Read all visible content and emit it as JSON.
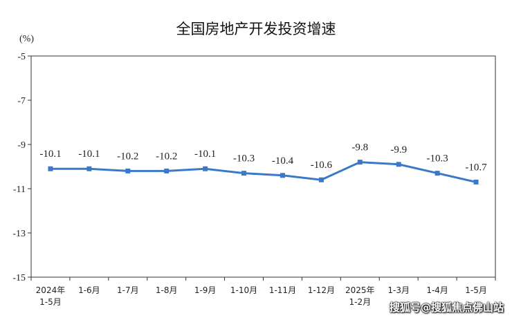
{
  "chart_data": {
    "type": "line",
    "title": "全国房地产开发投资增速",
    "ylabel": "(%)",
    "ylim": [
      -15,
      -5
    ],
    "yticks": [
      -5,
      -7,
      -9,
      -11,
      -13,
      -15
    ],
    "categories": [
      "2024年\n1-5月",
      "1-6月",
      "1-7月",
      "1-8月",
      "1-9月",
      "1-10月",
      "1-11月",
      "1-12月",
      "2025年\n1-2月",
      "1-3月",
      "1-4月",
      "1-5月"
    ],
    "series": [
      {
        "values": [
          -10.1,
          -10.1,
          -10.2,
          -10.2,
          -10.1,
          -10.3,
          -10.4,
          -10.6,
          -9.8,
          -9.9,
          -10.3,
          -10.7
        ],
        "labels": [
          "-10.1",
          "-10.1",
          "-10.2",
          "-10.2",
          "-10.1",
          "-10.3",
          "-10.4",
          "-10.6",
          "-9.8",
          "-9.9",
          "-10.3",
          "-10.7"
        ]
      }
    ],
    "grid": false,
    "colors": {
      "line": "#3a78c9",
      "axis": "#333333"
    }
  },
  "watermark": "搜狐号@搜狐焦点佛山站"
}
